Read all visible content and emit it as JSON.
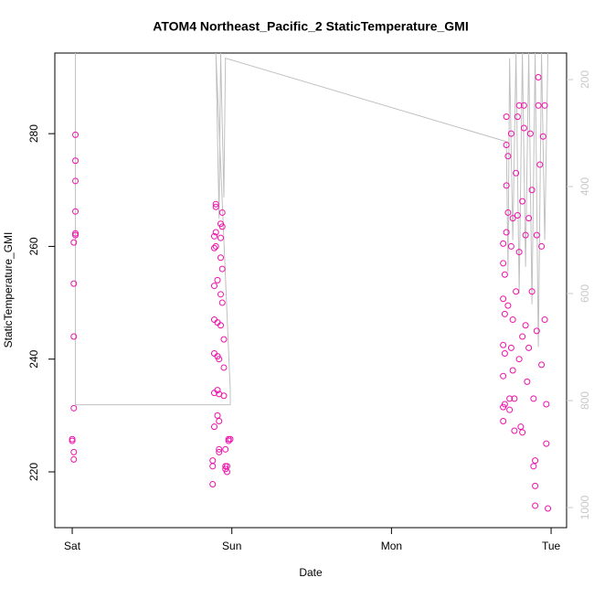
{
  "chart_data": {
    "type": "scatter",
    "title": "ATOM4 Northeast_Pacific_2 StaticTemperature_GMI",
    "xlabel": "Date",
    "ylabel": "StaticTemperature_GMI",
    "xlim": [
      -0.109,
      3.097
    ],
    "xticks": [
      {
        "value": 0,
        "label": "Sat"
      },
      {
        "value": 1,
        "label": "Sun"
      },
      {
        "value": 2,
        "label": "Mon"
      },
      {
        "value": 3,
        "label": "Tue"
      }
    ],
    "ylim": [
      210.1,
      294.3
    ],
    "yticks": [
      220,
      240,
      260,
      280
    ],
    "y2lim": [
      1037.6,
      150.4
    ],
    "y2ticks": [
      200,
      400,
      600,
      800,
      1000
    ],
    "y2color": "#c8c8c8",
    "series": [
      {
        "type": "line",
        "axis": "y2",
        "color": "#c0c0c0",
        "x": [
          0.02,
          0.02,
          0.99,
          0.99,
          0.9,
          0.92,
          0.93,
          0.95,
          0.96,
          2.72,
          2.73,
          2.74,
          2.76,
          2.78,
          2.8,
          2.82,
          2.84,
          2.86,
          2.88,
          2.9,
          2.92,
          2.94,
          2.96,
          2.98
        ],
        "values": [
          150,
          808,
          808,
          780,
          150,
          460,
          150,
          420,
          160,
          316,
          560,
          160,
          500,
          150,
          600,
          150,
          550,
          150,
          620,
          150,
          700,
          150,
          500,
          150
        ]
      },
      {
        "type": "points",
        "color": "#ee11aa",
        "x": [
          0.0,
          0.0,
          0.01,
          0.01,
          0.01,
          0.01,
          0.01,
          0.01,
          0.02,
          0.02,
          0.02,
          0.02,
          0.02,
          0.02,
          0.88,
          0.88,
          0.88,
          0.89,
          0.89,
          0.89,
          0.89,
          0.89,
          0.89,
          0.89,
          0.9,
          0.9,
          0.9,
          0.9,
          0.91,
          0.91,
          0.91,
          0.91,
          0.91,
          0.92,
          0.92,
          0.92,
          0.92,
          0.92,
          0.93,
          0.93,
          0.93,
          0.93,
          0.93,
          0.94,
          0.94,
          0.94,
          0.94,
          0.95,
          0.95,
          0.95,
          0.96,
          0.96,
          0.96,
          0.97,
          0.97,
          0.98,
          0.99,
          0.98,
          2.7,
          2.7,
          2.7,
          2.7,
          2.7,
          2.7,
          2.7,
          2.71,
          2.71,
          2.71,
          2.71,
          2.72,
          2.72,
          2.72,
          2.72,
          2.73,
          2.73,
          2.73,
          2.74,
          2.74,
          2.75,
          2.75,
          2.75,
          2.76,
          2.76,
          2.76,
          2.77,
          2.77,
          2.78,
          2.78,
          2.79,
          2.79,
          2.8,
          2.8,
          2.8,
          2.81,
          2.82,
          2.82,
          2.82,
          2.83,
          2.83,
          2.84,
          2.84,
          2.85,
          2.86,
          2.86,
          2.87,
          2.88,
          2.88,
          2.89,
          2.89,
          2.9,
          2.9,
          2.9,
          2.91,
          2.91,
          2.92,
          2.92,
          2.93,
          2.94,
          2.94,
          2.95,
          2.96,
          2.96,
          2.97,
          2.97,
          2.98
        ],
        "values": [
          225.5,
          225.8,
          223.5,
          222.2,
          231.3,
          244,
          253.4,
          260.7,
          262,
          262.3,
          266.2,
          271.6,
          275.2,
          279.8,
          217.8,
          222,
          221,
          228,
          234,
          241,
          247,
          253,
          259.7,
          261.8,
          262.5,
          267,
          267.5,
          260,
          254,
          246.5,
          240.5,
          234.5,
          230,
          229,
          223.5,
          224,
          233.8,
          240,
          246,
          251.5,
          258,
          261.5,
          264,
          266,
          263.5,
          256,
          250,
          243.5,
          238.5,
          233.5,
          224,
          221,
          220.5,
          220,
          221,
          225.5,
          225.8,
          225.8,
          229,
          231.5,
          237,
          242.5,
          250.7,
          257,
          260.5,
          232,
          241,
          248,
          255,
          262.5,
          270.8,
          278,
          283,
          276,
          266,
          249.5,
          231,
          233,
          242,
          260,
          280,
          265,
          247,
          238,
          233,
          227.3,
          252,
          273,
          265.5,
          283,
          285,
          259,
          240,
          228,
          227,
          244,
          268,
          281,
          285,
          262,
          246,
          236,
          242,
          265,
          280,
          270,
          252,
          233,
          221,
          214,
          217.5,
          222,
          245,
          262,
          285,
          290,
          274.5,
          260,
          239,
          279.5,
          285,
          247,
          225,
          232,
          213.5
        ]
      }
    ]
  }
}
